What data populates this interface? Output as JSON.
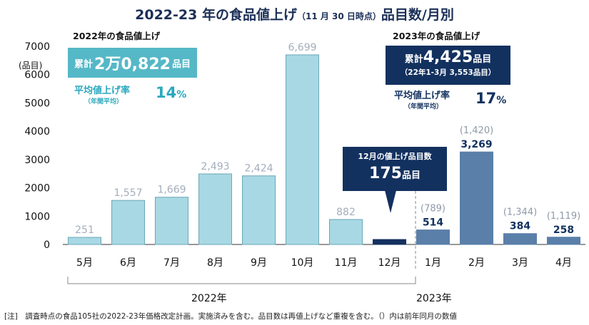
{
  "title": {
    "main": "2022-23 年の食品値上げ",
    "sub": "（11 月 30 日時点）",
    "tail": "品目数/月別"
  },
  "summary_2022": {
    "heading": "2022年の食品値上げ",
    "cumulative_prefix": "累計",
    "cumulative_value": "2万0,822",
    "cumulative_unit": "品目",
    "avg_rate_label": "平均値上げ率",
    "avg_rate_note": "（年間平均）",
    "avg_rate_value": "14",
    "avg_rate_unit": "%"
  },
  "summary_2023": {
    "heading": "2023年の食品値上げ",
    "cumulative_prefix": "累計",
    "cumulative_value": "4,425",
    "cumulative_unit": "品目",
    "cumulative_note": "（22年1-3月 3,553品目）",
    "avg_rate_label": "平均値上げ率",
    "avg_rate_note": "（年間平均）",
    "avg_rate_value": "17",
    "avg_rate_unit": "%"
  },
  "callout": {
    "heading": "12月の値上げ品目数",
    "value": "175",
    "unit": "品目"
  },
  "year_labels": {
    "y2022": "2022年",
    "y2023": "2023年"
  },
  "footnote": "[注]　調査時点の食品105社の2022-23年価格改定計画。実施済みを含む。品目数は再値上げなど重複を含む。（）内は前年同月の数値",
  "colors": {
    "bar_2022": "#a8d8e3",
    "bar_2022_stroke": "#6aa7b8",
    "bar_2023": "#5a7fa8",
    "bar_dec": "#13315f",
    "label_2022": "#a3aebb",
    "label_2023": "#13315f",
    "teal": "#55b8c7",
    "navy": "#13315f",
    "prev_year": "#8f9aa8"
  },
  "chart_data": {
    "type": "bar",
    "ylabel": "(品目)",
    "ylim": [
      0,
      7000
    ],
    "yticks": [
      0,
      1000,
      2000,
      3000,
      4000,
      5000,
      6000,
      7000
    ],
    "grid": false,
    "categories": [
      "5月",
      "6月",
      "7月",
      "8月",
      "9月",
      "10月",
      "11月",
      "12月",
      "1月",
      "2月",
      "3月",
      "4月"
    ],
    "values": [
      251,
      1557,
      1669,
      2493,
      2424,
      6699,
      882,
      175,
      514,
      3269,
      384,
      258
    ],
    "value_labels": [
      "251",
      "1,557",
      "1,669",
      "2,493",
      "2,424",
      "6,699",
      "882",
      "",
      "514",
      "3,269",
      "384",
      "258"
    ],
    "prev_year_values": [
      null,
      null,
      null,
      null,
      null,
      null,
      null,
      null,
      789,
      1420,
      1344,
      1119
    ],
    "prev_year_labels": [
      "",
      "",
      "",
      "",
      "",
      "",
      "",
      "",
      "(789)",
      "(1,420)",
      "(1,344)",
      "(1,119)"
    ],
    "year_group": [
      "2022",
      "2022",
      "2022",
      "2022",
      "2022",
      "2022",
      "2022",
      "2022",
      "2023",
      "2023",
      "2023",
      "2023"
    ]
  }
}
